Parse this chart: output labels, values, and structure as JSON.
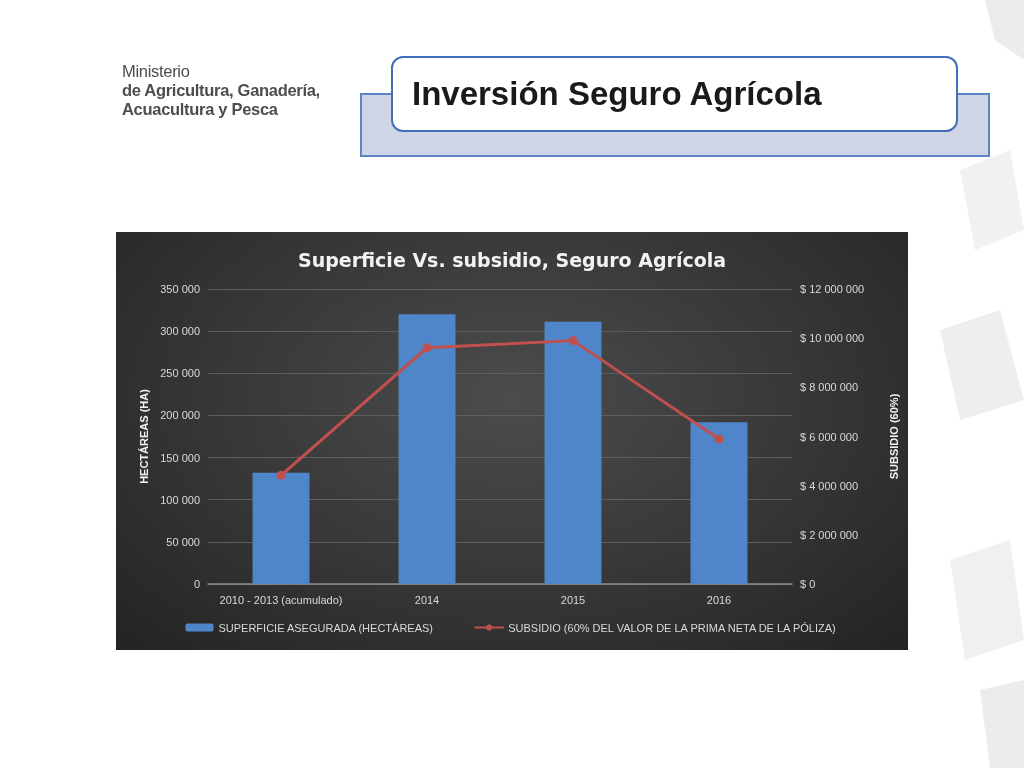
{
  "chart_data": {
    "type": "bar",
    "title": "Inversión Seguro Agrícola",
    "subtitle": "Superficie Vs. subsidio, Seguro Agrícola",
    "annotations": [
      "Ministerio de Agricultura, Ganadería, Acuacultura y Pesca"
    ],
    "ylabel": "HECTÁREAS (HA)",
    "y2label": "SUBSIDIO (60%)",
    "categories": [
      "2010 - 2013 (acumulado)",
      "2014",
      "2015",
      "2016"
    ],
    "series": [
      {
        "name": "SUPERFICIE ASEGURADA (HECTÁREAS)",
        "type": "bar",
        "color": "#4f86c9",
        "values": [
          132000,
          320000,
          311000,
          192000
        ]
      },
      {
        "name": "SUBSIDIO (60% DEL VALOR DE LA PRIMA NETA DE LA PÓLIZA)",
        "type": "line",
        "axis": "y2",
        "color": "#c0504d",
        "marker": "circle",
        "values": [
          4420000,
          9610000,
          9900000,
          5900000
        ]
      }
    ],
    "ylim": [
      0,
      350000
    ],
    "yticks": [
      0,
      {
        "value": 50000,
        "label": "50 000"
      },
      {
        "value": 100000,
        "label": "100 000"
      },
      {
        "value": 150000,
        "label": "150 000"
      },
      {
        "value": 200000,
        "label": "200 000"
      },
      {
        "value": 250000,
        "label": "250 000"
      },
      {
        "value": 300000,
        "label": "300 000"
      },
      {
        "value": 350000,
        "label": "350 000"
      }
    ],
    "y2lim": [
      0,
      12000000
    ],
    "y2ticks": [
      {
        "value": 0,
        "label": "$ 0"
      },
      {
        "value": 2000000,
        "label": "$ 2 000 000"
      },
      {
        "value": 4000000,
        "label": "$ 4 000 000"
      },
      {
        "value": 6000000,
        "label": "$ 6 000 000"
      },
      {
        "value": 8000000,
        "label": "$ 8 000 000"
      },
      {
        "value": 10000000,
        "label": "$ 10 000 000"
      },
      {
        "value": 12000000,
        "label": "$ 12 000 000"
      }
    ],
    "grid": "y",
    "legend": "bottom"
  }
}
